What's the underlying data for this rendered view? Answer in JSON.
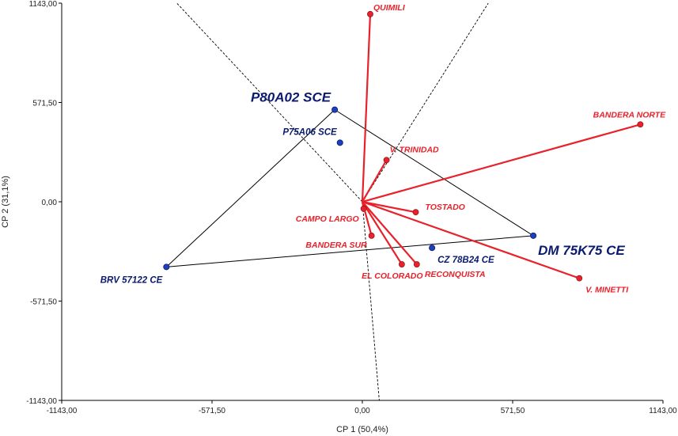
{
  "chart_data": {
    "type": "scatter",
    "title": "",
    "xlabel": "CP 1 (50,4%)",
    "ylabel": "CP 2 (31,1%)",
    "xlim": [
      -1143,
      1143
    ],
    "ylim": [
      -1143,
      1143
    ],
    "x_ticks": [
      "-1143,00",
      "-571,50",
      "0,00",
      "571,50",
      "1143,00"
    ],
    "y_ticks": [
      "-1143,00",
      "-571,50",
      "0,00",
      "571,50",
      "1143,00"
    ],
    "grid": false,
    "legend": "none",
    "colors": {
      "environments": "#e8212a",
      "genotypes": "#0a1a6e",
      "polygon": "#000000"
    },
    "environments": [
      {
        "name": "QUIMILI",
        "x": 30,
        "y": 1080
      },
      {
        "name": "BANDERA NORTE",
        "x": 1057,
        "y": 445
      },
      {
        "name": "V. TRINIDAD",
        "x": 92,
        "y": 240
      },
      {
        "name": "TOSTADO",
        "x": 203,
        "y": -60
      },
      {
        "name": "CAMPO LARGO",
        "x": 5,
        "y": -40
      },
      {
        "name": "BANDERA SUR",
        "x": 35,
        "y": -195
      },
      {
        "name": "EL COLORADO",
        "x": 150,
        "y": -360
      },
      {
        "name": "RECONQUISTA",
        "x": 207,
        "y": -360
      },
      {
        "name": "V. MINETTI",
        "x": 825,
        "y": -440
      }
    ],
    "genotypes": [
      {
        "name": "P80A02 SCE",
        "x": -105,
        "y": 530
      },
      {
        "name": "P75A06 SCE",
        "x": -85,
        "y": 340
      },
      {
        "name": "DM 75K75 CE",
        "x": 650,
        "y": -195
      },
      {
        "name": "CZ 78B24 CE",
        "x": 265,
        "y": -265
      },
      {
        "name": "BRV 57122 CE",
        "x": -745,
        "y": -375
      }
    ],
    "polygon": [
      "P80A02 SCE",
      "DM 75K75 CE",
      "BRV 57122 CE"
    ]
  }
}
